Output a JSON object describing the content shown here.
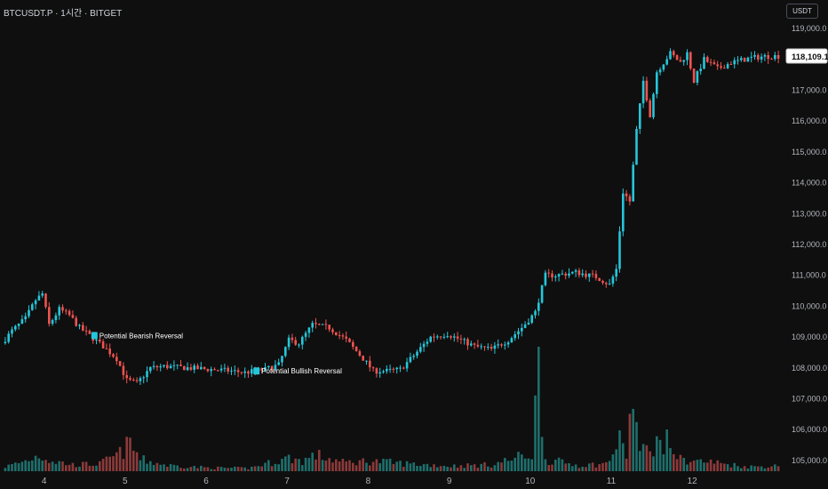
{
  "header": {
    "symbol_line": "BTCUSDT.P · 1시간 · BITGET",
    "currency_button": "USDT"
  },
  "colors": {
    "background": "#0f0f0f",
    "up": "#26c6da",
    "down": "#ef5350",
    "volume_up": "#1e6f6c",
    "volume_down": "#8c3a3a",
    "text": "#d1d4dc",
    "axis_text": "#b2b5be"
  },
  "chart_data": {
    "type": "candlestick",
    "title": "",
    "xlabel": "",
    "ylabel": "",
    "ylim": [
      104650,
      119350
    ],
    "y_ticks": [
      "119,000.0",
      "118,000.0",
      "117,000.0",
      "116,000.0",
      "115,000.0",
      "114,000.0",
      "113,000.0",
      "112,000.0",
      "111,000.0",
      "110,000.0",
      "109,000.0",
      "108,000.0",
      "107,000.0",
      "106,000.0",
      "105,000.0"
    ],
    "y_tick_values": [
      119000,
      118000,
      117000,
      116000,
      115000,
      114000,
      113000,
      112000,
      111000,
      110000,
      109000,
      108000,
      107000,
      106000,
      105000
    ],
    "x_ticks": [
      "4",
      "5",
      "6",
      "7",
      "8",
      "9",
      "10",
      "11",
      "12"
    ],
    "x_tick_hours": [
      12,
      36,
      60,
      84,
      108,
      132,
      156,
      180,
      204
    ],
    "hours": 230,
    "current_price": 118109.1,
    "current_price_label": "118,109.1",
    "annotations": [
      {
        "label": "Potential Bearish Reversal",
        "hour": 26,
        "price": 109050
      },
      {
        "label": "Potential Bullish Reversal",
        "hour": 74,
        "price": 107900
      }
    ],
    "price_path": [
      [
        0,
        108800
      ],
      [
        3,
        109200
      ],
      [
        7,
        109600
      ],
      [
        10,
        110200
      ],
      [
        12,
        110400
      ],
      [
        14,
        109400
      ],
      [
        17,
        109900
      ],
      [
        20,
        109700
      ],
      [
        23,
        109300
      ],
      [
        26,
        109050
      ],
      [
        30,
        108700
      ],
      [
        34,
        108300
      ],
      [
        37,
        107600
      ],
      [
        40,
        107500
      ],
      [
        44,
        108000
      ],
      [
        48,
        108050
      ],
      [
        55,
        108000
      ],
      [
        62,
        107950
      ],
      [
        68,
        107900
      ],
      [
        72,
        107850
      ],
      [
        78,
        107950
      ],
      [
        82,
        108100
      ],
      [
        85,
        108900
      ],
      [
        88,
        108800
      ],
      [
        92,
        109400
      ],
      [
        97,
        109300
      ],
      [
        102,
        108900
      ],
      [
        107,
        108300
      ],
      [
        110,
        107900
      ],
      [
        114,
        107900
      ],
      [
        118,
        107950
      ],
      [
        122,
        108400
      ],
      [
        127,
        109000
      ],
      [
        132,
        109100
      ],
      [
        136,
        108900
      ],
      [
        140,
        108700
      ],
      [
        145,
        108600
      ],
      [
        150,
        108900
      ],
      [
        154,
        109300
      ],
      [
        158,
        109800
      ],
      [
        161,
        111000
      ],
      [
        164,
        111000
      ],
      [
        170,
        111100
      ],
      [
        176,
        110950
      ],
      [
        180,
        110700
      ],
      [
        182,
        111200
      ],
      [
        184,
        113700
      ],
      [
        186,
        113400
      ],
      [
        188,
        115700
      ],
      [
        190,
        117300
      ],
      [
        192,
        116200
      ],
      [
        194,
        117600
      ],
      [
        196,
        117900
      ],
      [
        198,
        118200
      ],
      [
        201,
        117900
      ],
      [
        203,
        118200
      ],
      [
        205,
        117300
      ],
      [
        208,
        118000
      ],
      [
        212,
        117700
      ],
      [
        216,
        117900
      ],
      [
        220,
        118000
      ],
      [
        222,
        118050
      ],
      [
        226,
        118100
      ],
      [
        229,
        118109
      ]
    ],
    "volume_path": [
      [
        0,
        0.15
      ],
      [
        6,
        0.35
      ],
      [
        10,
        0.55
      ],
      [
        14,
        0.35
      ],
      [
        20,
        0.22
      ],
      [
        28,
        0.25
      ],
      [
        34,
        0.6
      ],
      [
        37,
        0.95
      ],
      [
        40,
        0.4
      ],
      [
        48,
        0.2
      ],
      [
        60,
        0.12
      ],
      [
        72,
        0.1
      ],
      [
        84,
        0.45
      ],
      [
        88,
        0.35
      ],
      [
        92,
        0.55
      ],
      [
        100,
        0.3
      ],
      [
        108,
        0.35
      ],
      [
        114,
        0.3
      ],
      [
        120,
        0.25
      ],
      [
        132,
        0.18
      ],
      [
        144,
        0.22
      ],
      [
        156,
        0.6
      ],
      [
        158,
        3.6
      ],
      [
        160,
        0.4
      ],
      [
        170,
        0.2
      ],
      [
        178,
        0.25
      ],
      [
        182,
        1.0
      ],
      [
        184,
        0.6
      ],
      [
        186,
        2.6
      ],
      [
        188,
        0.6
      ],
      [
        192,
        0.9
      ],
      [
        196,
        1.0
      ],
      [
        200,
        0.4
      ],
      [
        210,
        0.3
      ],
      [
        220,
        0.15
      ],
      [
        229,
        0.18
      ]
    ]
  }
}
